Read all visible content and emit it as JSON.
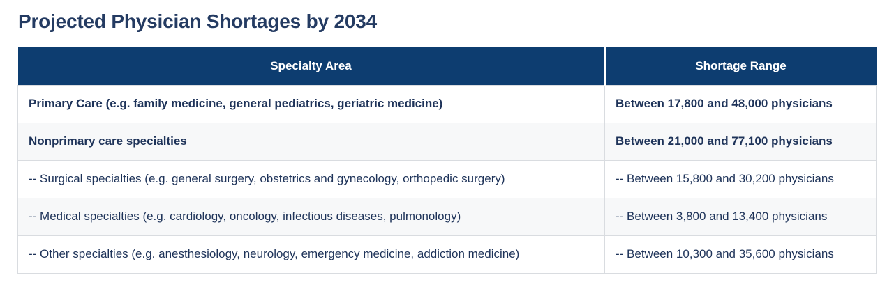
{
  "page": {
    "title": "Projected Physician Shortages by 2034"
  },
  "table": {
    "columns": [
      {
        "label": "Specialty Area"
      },
      {
        "label": "Shortage Range"
      }
    ],
    "rows": [
      {
        "specialty": "Primary Care (e.g. family medicine, general pediatrics, geriatric medicine)",
        "shortage": "Between 17,800 and 48,000 physicians",
        "emphasis": true
      },
      {
        "specialty": "Nonprimary care specialties",
        "shortage": "Between 21,000 and 77,100 physicians",
        "emphasis": true
      },
      {
        "specialty": "-- Surgical specialties (e.g. general surgery, obstetrics and gynecology, orthopedic surgery)",
        "shortage": "-- Between 15,800 and 30,200 physicians",
        "emphasis": false
      },
      {
        "specialty": "-- Medical specialties (e.g. cardiology, oncology, infectious diseases, pulmonology)",
        "shortage": "-- Between 3,800 and 13,400 physicians",
        "emphasis": false
      },
      {
        "specialty": "-- Other specialties (e.g. anesthesiology, neurology, emergency medicine, addiction medicine)",
        "shortage": "-- Between 10,300 and 35,600 physicians",
        "emphasis": false
      }
    ]
  },
  "colors": {
    "header_bg": "#0d3d70",
    "header_text": "#ffffff",
    "title_text": "#243b62",
    "body_text": "#1e3359",
    "row_alt_bg": "#f7f8f9",
    "border": "#d9dce0"
  }
}
